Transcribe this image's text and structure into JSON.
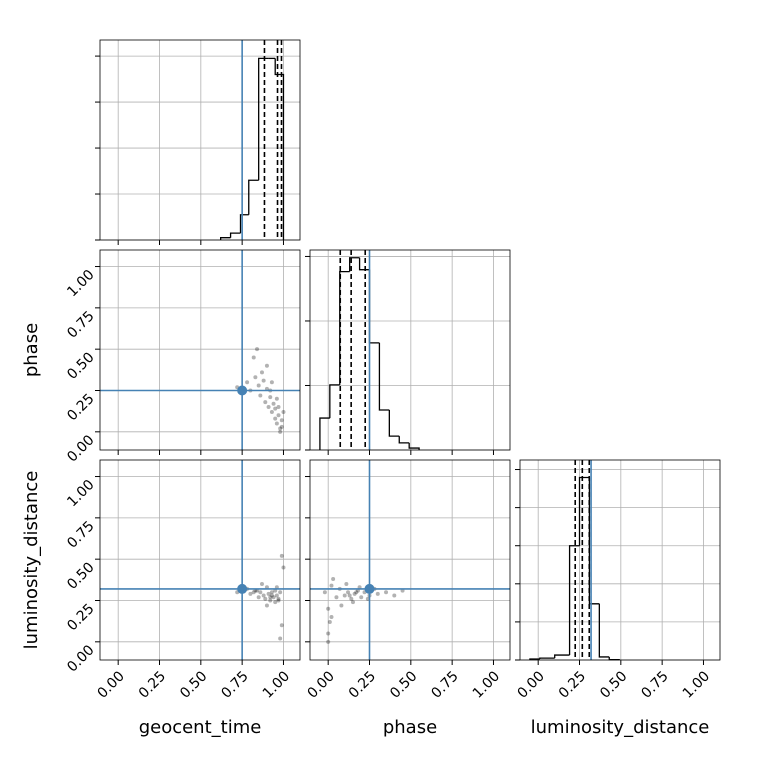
{
  "chart_data": [
    {
      "type": "histogram",
      "xlim": [
        -0.11,
        1.1
      ],
      "ylim": [
        0,
        435
      ],
      "bins": [
        0.62,
        0.68,
        0.74,
        0.79,
        0.85,
        0.91,
        0.95,
        1.0
      ],
      "values": [
        5,
        15,
        55,
        130,
        395,
        395,
        360
      ],
      "color": "#000000",
      "xtick_marks": [
        0,
        0.25,
        0.5,
        0.75,
        1.0
      ],
      "ytick_marks": [
        0,
        100,
        200,
        300,
        400
      ],
      "grid": true,
      "truth": 0.75,
      "truth_color": "#4682b4",
      "quantiles": [
        0.885,
        0.964,
        0.988
      ]
    },
    {
      "type": "scatter",
      "xlim": [
        -0.11,
        1.1
      ],
      "ylim": [
        -0.11,
        1.1
      ],
      "ylabel": "phase",
      "x": [
        0.72,
        0.78,
        0.8,
        0.83,
        0.85,
        0.86,
        0.88,
        0.89,
        0.9,
        0.91,
        0.92,
        0.93,
        0.94,
        0.95,
        0.95,
        0.96,
        0.97,
        0.98,
        0.99,
        1.0,
        0.87,
        0.9,
        0.93,
        0.96,
        0.98,
        0.82,
        0.84,
        0.92,
        0.97,
        0.99
      ],
      "y": [
        0.27,
        0.3,
        0.25,
        0.33,
        0.28,
        0.22,
        0.31,
        0.18,
        0.26,
        0.15,
        0.21,
        0.12,
        0.17,
        0.08,
        0.14,
        0.05,
        0.1,
        0.02,
        0.07,
        0.12,
        0.36,
        0.4,
        0.3,
        0.2,
        0.0,
        0.45,
        0.5,
        0.25,
        0.15,
        0.03
      ],
      "color": "#000000",
      "xtick_marks": [
        0,
        0.25,
        0.5,
        0.75,
        1.0
      ],
      "yticks": [
        {
          "value": 0,
          "label": "0.00"
        },
        {
          "value": 0.25,
          "label": "0.25"
        },
        {
          "value": 0.5,
          "label": "0.50"
        },
        {
          "value": 0.75,
          "label": "0.75"
        },
        {
          "value": 1.0,
          "label": "1.00"
        }
      ],
      "grid": true,
      "truth_x": 0.75,
      "truth_y": 0.25,
      "truth_color": "#4682b4"
    },
    {
      "type": "histogram",
      "xlim": [
        -0.11,
        1.1
      ],
      "ylim": [
        0,
        620
      ],
      "bins": [
        -0.05,
        0.01,
        0.07,
        0.13,
        0.19,
        0.25,
        0.31,
        0.37,
        0.43,
        0.49,
        0.55
      ],
      "values": [
        99,
        202,
        553,
        596,
        559,
        332,
        124,
        43,
        22,
        6
      ],
      "color": "#000000",
      "xtick_marks": [
        0,
        0.25,
        0.5,
        0.75,
        1.0
      ],
      "ytick_marks": [
        0,
        200,
        400,
        600
      ],
      "grid": true,
      "truth": 0.25,
      "truth_color": "#4682b4",
      "quantiles": [
        0.073,
        0.139,
        0.224
      ]
    },
    {
      "type": "scatter",
      "xlim": [
        -0.11,
        1.1
      ],
      "ylim": [
        -0.11,
        1.1
      ],
      "xlabel": "geocent_time",
      "ylabel": "luminosity_distance",
      "x": [
        0.72,
        0.78,
        0.8,
        0.83,
        0.85,
        0.86,
        0.88,
        0.89,
        0.9,
        0.91,
        0.92,
        0.93,
        0.94,
        0.95,
        0.95,
        0.96,
        0.97,
        0.98,
        0.99,
        1.0,
        0.87,
        0.9,
        0.93,
        0.96,
        0.98,
        0.82,
        0.84,
        0.92,
        0.97,
        0.99
      ],
      "y": [
        0.3,
        0.32,
        0.29,
        0.31,
        0.27,
        0.3,
        0.28,
        0.26,
        0.33,
        0.29,
        0.25,
        0.3,
        0.27,
        0.24,
        0.31,
        0.28,
        0.26,
        0.3,
        0.1,
        0.45,
        0.35,
        0.22,
        0.28,
        0.33,
        0.02,
        0.3,
        0.31,
        0.27,
        0.25,
        0.52
      ],
      "color": "#000000",
      "xticks": [
        {
          "value": 0,
          "label": "0.00"
        },
        {
          "value": 0.25,
          "label": "0.25"
        },
        {
          "value": 0.5,
          "label": "0.50"
        },
        {
          "value": 0.75,
          "label": "0.75"
        },
        {
          "value": 1.0,
          "label": "1.00"
        }
      ],
      "yticks": [
        {
          "value": 0,
          "label": "0.00"
        },
        {
          "value": 0.25,
          "label": "0.25"
        },
        {
          "value": 0.5,
          "label": "0.50"
        },
        {
          "value": 0.75,
          "label": "0.75"
        },
        {
          "value": 1.0,
          "label": "1.00"
        }
      ],
      "grid": true,
      "truth_x": 0.75,
      "truth_y": 0.32,
      "truth_color": "#4682b4"
    },
    {
      "type": "scatter",
      "xlim": [
        -0.11,
        1.1
      ],
      "ylim": [
        -0.11,
        1.1
      ],
      "xlabel": "phase",
      "x": [
        -0.02,
        0.0,
        0.02,
        0.05,
        0.07,
        0.1,
        0.12,
        0.14,
        0.16,
        0.18,
        0.2,
        0.22,
        0.25,
        0.28,
        0.3,
        0.35,
        0.4,
        0.0,
        0.01,
        0.03,
        0.08,
        0.11,
        0.15,
        0.19,
        0.24,
        0.0,
        0.02,
        0.13,
        0.17,
        0.45
      ],
      "y": [
        0.3,
        0.2,
        0.34,
        0.27,
        0.32,
        0.28,
        0.3,
        0.26,
        0.29,
        0.31,
        0.27,
        0.3,
        0.28,
        0.32,
        0.29,
        0.3,
        0.28,
        0.05,
        0.12,
        0.38,
        0.22,
        0.35,
        0.24,
        0.33,
        0.26,
        0.0,
        0.15,
        0.28,
        0.3,
        0.31
      ],
      "color": "#000000",
      "xticks": [
        {
          "value": 0,
          "label": "0.00"
        },
        {
          "value": 0.25,
          "label": "0.25"
        },
        {
          "value": 0.5,
          "label": "0.50"
        },
        {
          "value": 0.75,
          "label": "0.75"
        },
        {
          "value": 1.0,
          "label": "1.00"
        }
      ],
      "ytick_marks": [
        0,
        0.25,
        0.5,
        0.75,
        1.0
      ],
      "grid": true,
      "truth_x": 0.25,
      "truth_y": 0.32,
      "truth_color": "#4682b4"
    },
    {
      "type": "histogram",
      "xlim": [
        -0.11,
        1.1
      ],
      "ylim": [
        0,
        1050
      ],
      "xlabel": "luminosity_distance",
      "bins": [
        -0.05,
        0.01,
        0.1,
        0.19,
        0.25,
        0.31,
        0.37,
        0.43,
        0.49
      ],
      "values": [
        5,
        10,
        26,
        600,
        958,
        295,
        16,
        2
      ],
      "color": "#000000",
      "xticks": [
        {
          "value": 0,
          "label": "0.00"
        },
        {
          "value": 0.25,
          "label": "0.25"
        },
        {
          "value": 0.5,
          "label": "0.50"
        },
        {
          "value": 0.75,
          "label": "0.75"
        },
        {
          "value": 1.0,
          "label": "1.00"
        }
      ],
      "ytick_marks": [
        0,
        200,
        400,
        600,
        800,
        1000
      ],
      "grid": true,
      "truth": 0.32,
      "truth_color": "#4682b4",
      "quantiles": [
        0.224,
        0.267,
        0.309
      ]
    }
  ]
}
